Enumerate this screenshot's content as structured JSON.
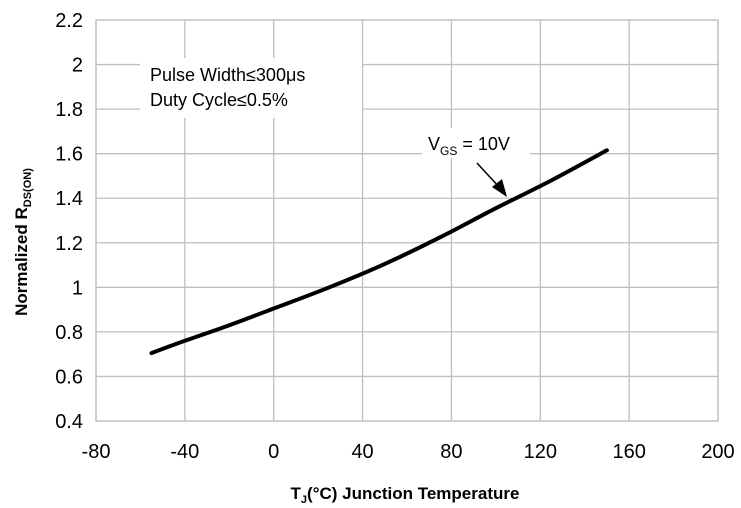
{
  "chart_data": {
    "type": "line",
    "title": "",
    "xlabel": {
      "main": "T",
      "sub": "J",
      "rest": "(°C) Junction Temperature"
    },
    "ylabel": {
      "main": "Normalized R",
      "sub": "DS(ON)"
    },
    "xlim": [
      -80,
      200
    ],
    "ylim": [
      0.4,
      2.2
    ],
    "xticks": [
      -80,
      -40,
      0,
      40,
      80,
      120,
      160,
      200
    ],
    "yticks": [
      0.4,
      0.6,
      0.8,
      1,
      1.2,
      1.4,
      1.6,
      1.8,
      2,
      2.2
    ],
    "xtick_labels": [
      "-80",
      "-40",
      "0",
      "40",
      "80",
      "120",
      "160",
      "200"
    ],
    "ytick_labels": [
      "0.4",
      "0.6",
      "0.8",
      "1",
      "1.2",
      "1.4",
      "1.6",
      "1.8",
      "2",
      "2.2"
    ],
    "grid": true,
    "series": [
      {
        "name": "VGS = 10V",
        "x": [
          -55,
          -40,
          -20,
          0,
          25,
          50,
          75,
          100,
          125,
          150
        ],
        "y": [
          0.705,
          0.76,
          0.83,
          0.905,
          1.0,
          1.105,
          1.225,
          1.355,
          1.48,
          1.615
        ]
      }
    ],
    "annotations": {
      "conditions": [
        "Pulse Width≤300μs",
        "Duty Cycle≤0.5%"
      ],
      "series_label": {
        "main": "V",
        "sub": "GS",
        "rest": " = 10V",
        "arrow_target": {
          "x": 105,
          "y": 1.37
        }
      }
    }
  }
}
